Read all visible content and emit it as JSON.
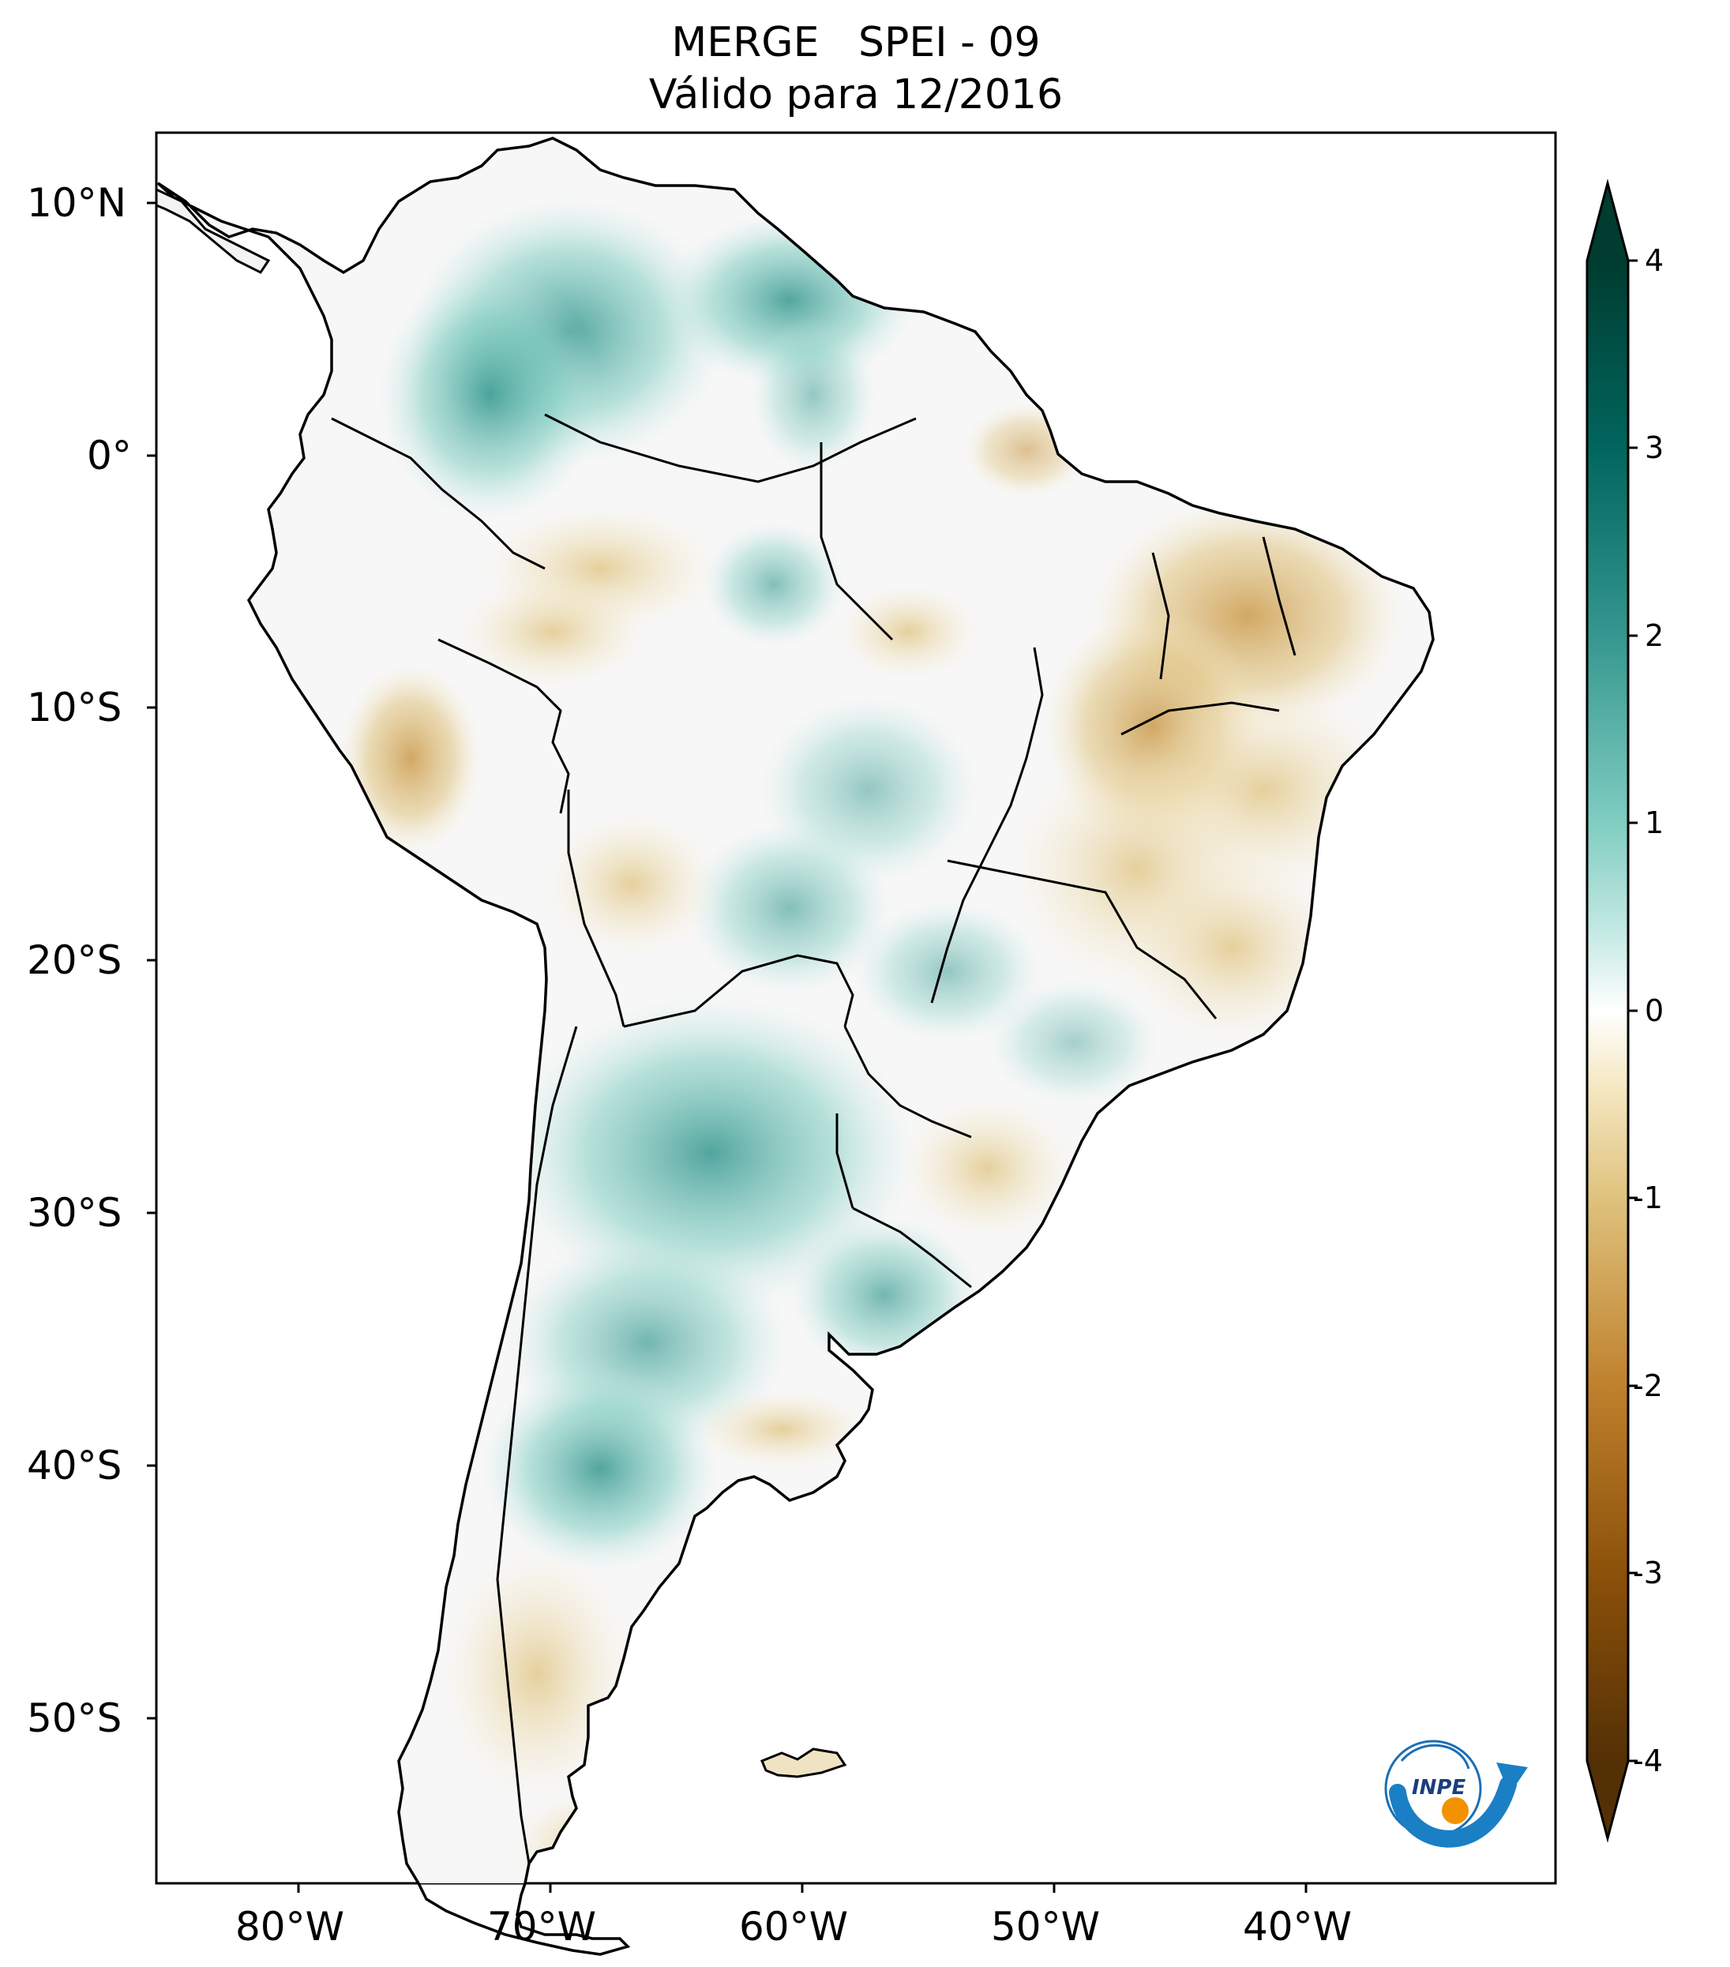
{
  "title": {
    "line1": "MERGE   SPEI - 09",
    "line2": "Válido para 12/2016"
  },
  "axes": {
    "lon_ticks": [
      "80°W",
      "70°W",
      "60°W",
      "50°W",
      "40°W"
    ],
    "lat_ticks": [
      "10°N",
      "0°",
      "10°S",
      "20°S",
      "30°S",
      "40°S",
      "50°S"
    ]
  },
  "colorbar": {
    "ticks": [
      "4",
      "3",
      "2",
      "1",
      "0",
      "-1",
      "-2",
      "-3",
      "-4"
    ],
    "range": [
      -4,
      4
    ],
    "extend": "both",
    "colormap": "BrBG",
    "colors": {
      "dry_dark": "#543005",
      "dry_mid": "#bf812d",
      "dry_light": "#f6e8c3",
      "neutral": "#f5f5f5",
      "wet_light": "#c7eae5",
      "wet_mid": "#35978f",
      "wet_dark": "#003c30"
    }
  },
  "map": {
    "region": "South America",
    "lon_range": [
      -85,
      -30
    ],
    "lat_range": [
      -56,
      13
    ],
    "coastline": "#000000"
  },
  "logo": {
    "text": "INPE"
  }
}
